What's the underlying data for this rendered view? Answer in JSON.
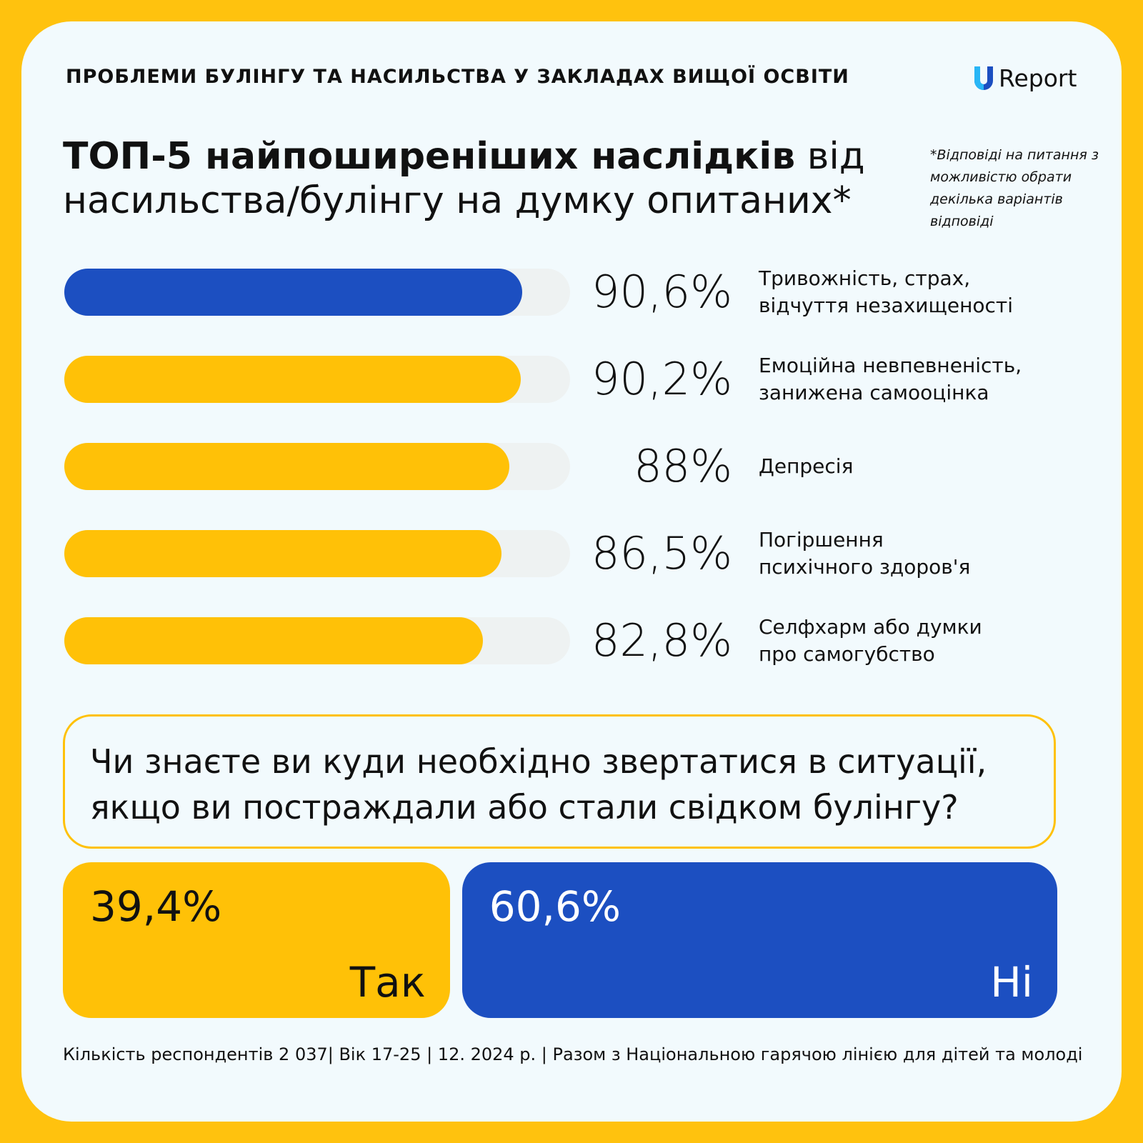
{
  "header": "ПРОБЛЕМИ БУЛІНГУ ТА НАСИЛЬСТВА У ЗАКЛАДАХ ВИЩОЇ ОСВІТИ",
  "logo": "Report",
  "note": "*Відповіді на питання з можливістю обрати декілька варіантів відповіді",
  "chart_data": {
    "type": "bar",
    "orientation": "horizontal",
    "title": {
      "bold": "ТОП-5 найпоширеніших наслідків",
      "regular": "від насильства/булінгу на думку опитаних*"
    },
    "categories": [
      "Тривожність, страх,\nвідчуття незахищеності",
      "Емоційна невпевненість,\nзанижена самооцінка",
      "Депресія",
      "Погіршення\nпсихічного здоров'я",
      "Селфхарм або думки\nпро самогубство"
    ],
    "values": [
      90.6,
      90.2,
      88,
      86.5,
      82.8
    ],
    "value_labels": [
      "90,6%",
      "90,2%",
      "88%",
      "86,5%",
      "82,8%"
    ],
    "colors": [
      "#1c4fc1",
      "#ffc107",
      "#ffc107",
      "#ffc107",
      "#ffc107"
    ],
    "track_color": "#eef2f2",
    "xlim": [
      0,
      100
    ]
  },
  "poll": {
    "question": "Чи знаєте ви куди необхідно звертатися в ситуації, якщо ви постраждали або стали свідком булінгу?",
    "answers": [
      {
        "label": "Так",
        "value": 39.4,
        "value_label": "39,4%",
        "color": "#ffc107",
        "text_color": "#111111"
      },
      {
        "label": "Ні",
        "value": 60.6,
        "value_label": "60,6%",
        "color": "#1c4fc1",
        "text_color": "#ffffff"
      }
    ]
  },
  "footer": "Кількість респондентів 2 037| Вік 17-25 | 12. 2024 р. | Разом з Національною гарячою лінією для дітей та молоді"
}
